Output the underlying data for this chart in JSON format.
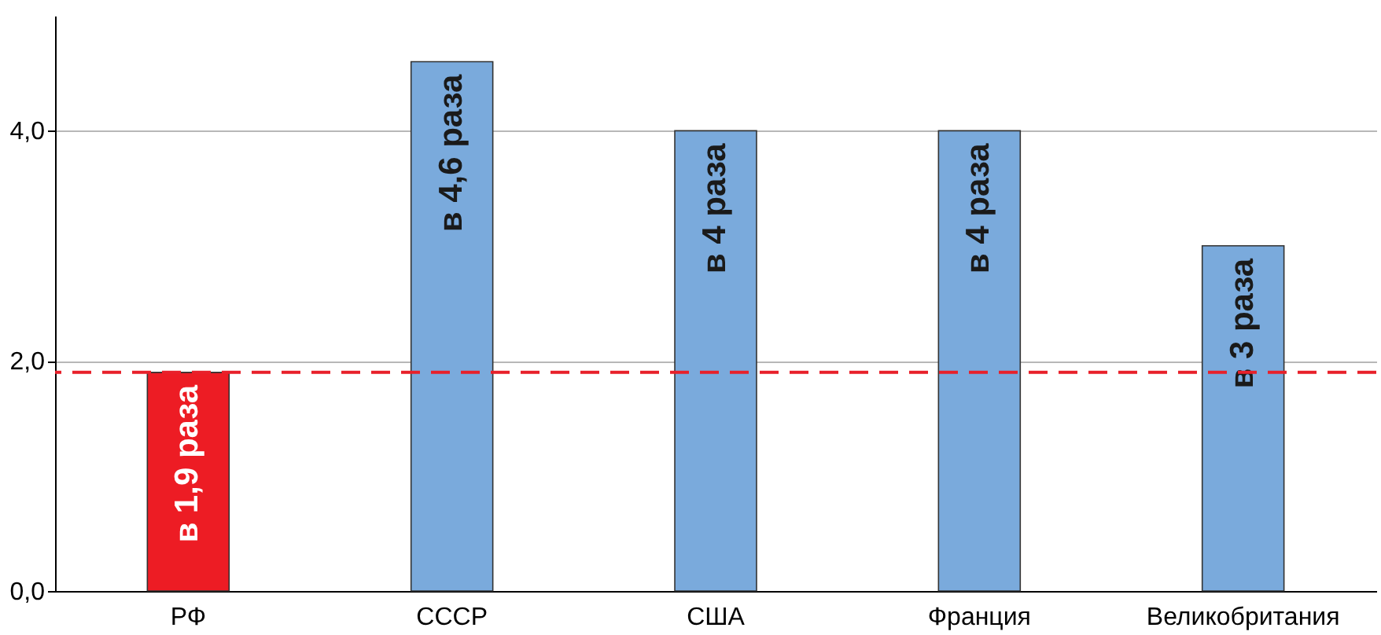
{
  "chart_data": {
    "type": "bar",
    "categories": [
      "РФ",
      "СССР",
      "США",
      "Франция",
      "Великобритания"
    ],
    "values": [
      1.9,
      4.6,
      4.0,
      4.0,
      3.0
    ],
    "colors": [
      "#ed1c24",
      "#7aaadc",
      "#7aaadc",
      "#7aaadc",
      "#7aaadc"
    ],
    "value_labels": [
      "в 1,9 раза",
      "в 4,6 раза",
      "в 4 раза",
      "в 4 раза",
      "в 3 раза"
    ],
    "ylim": [
      0,
      5
    ],
    "yticks": [
      {
        "value": 0,
        "label": "0,0"
      },
      {
        "value": 2,
        "label": "2,0"
      },
      {
        "value": 4,
        "label": "4,0"
      }
    ],
    "grid": "y",
    "ref_lines": [
      {
        "axis": "y",
        "value": 1.9,
        "label": null,
        "color": "#e8202a",
        "line_style": "dashed"
      }
    ]
  }
}
